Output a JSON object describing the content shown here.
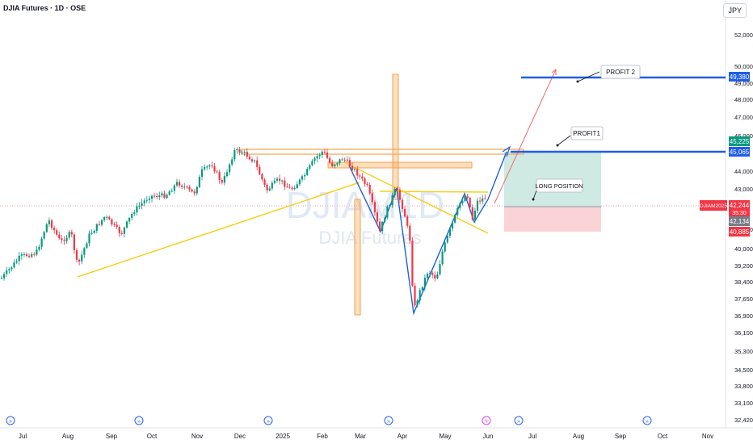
{
  "header": {
    "title": "DJIA Futures · 1D · OSE",
    "currency": "JPY"
  },
  "watermark": {
    "symbol": "DJIAM1D",
    "name": "DJIA Futures"
  },
  "price_axis": [
    "52,000",
    "50,000",
    "49,000",
    "48,000",
    "47,000",
    "46,000",
    "44,000",
    "43,000",
    "41,000",
    "40,000",
    "39,200",
    "38,400",
    "37,650",
    "36,900",
    "36,100",
    "35,300",
    "34,500",
    "33,800",
    "33,100",
    "32,420"
  ],
  "time_axis": [
    "Jul",
    "Aug",
    "Sep",
    "Oct",
    "Nov",
    "Dec",
    "2025",
    "Feb",
    "Mar",
    "Apr",
    "May",
    "Jun",
    "Jul",
    "Aug",
    "Sep",
    "Oct",
    "Nov"
  ],
  "price_tags": {
    "profit2": "49,380",
    "target": "45,225",
    "profit1": "45,065",
    "symbol": "DJIAM2025",
    "last": "42,244",
    "countdown": "35:30",
    "entry": "42,134",
    "stop": "40,885"
  },
  "annotations": {
    "profit2": "PROFIT 2",
    "profit1": "PROFIT1",
    "long": "LONG POSITION"
  },
  "colors": {
    "up": "#089981",
    "down": "#f23645",
    "blue": "#1e5ee8",
    "yellow": "#f5d020",
    "orange": "#f7a24b",
    "red_line": "#f06b6b",
    "tp_fill": "#cfe9e3",
    "sl_fill": "#f9d3d6"
  }
}
